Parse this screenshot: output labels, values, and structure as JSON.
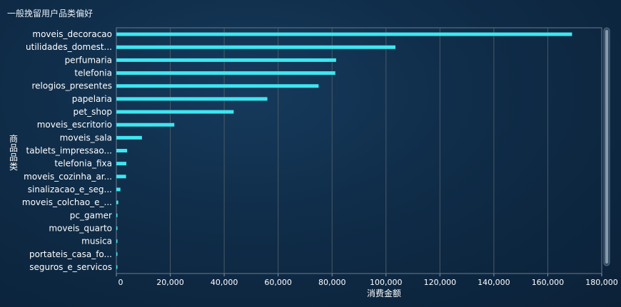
{
  "title": "一般挽留用户品类偏好",
  "chart_data": {
    "type": "bar",
    "orientation": "horizontal",
    "title": "一般挽留用户品类偏好",
    "xlabel": "消费金额",
    "ylabel": "商品品类",
    "xlim": [
      0,
      180000
    ],
    "x_ticks": [
      "0",
      "20,000",
      "40,000",
      "60,000",
      "80,000",
      "100,000",
      "120,000",
      "140,000",
      "160,000",
      "180,000"
    ],
    "grid": true,
    "bar_color": "#3ee6f0",
    "categories": [
      "moveis_decoracao",
      "utilidades_domest...",
      "perfumaria",
      "telefonia",
      "relogios_presentes",
      "papelaria",
      "pet_shop",
      "moveis_escritorio",
      "moveis_sala",
      "tablets_impressao...",
      "telefonia_fixa",
      "moveis_cozinha_ar...",
      "sinalizacao_e_seg...",
      "moveis_colchao_e_...",
      "pc_gamer",
      "moveis_quarto",
      "musica",
      "portateis_casa_fo...",
      "seguros_e_servicos"
    ],
    "values": [
      169000,
      103500,
      81500,
      81200,
      75000,
      56000,
      43500,
      21500,
      9500,
      4000,
      3700,
      3600,
      1500,
      700,
      150,
      120,
      100,
      80,
      50
    ]
  }
}
